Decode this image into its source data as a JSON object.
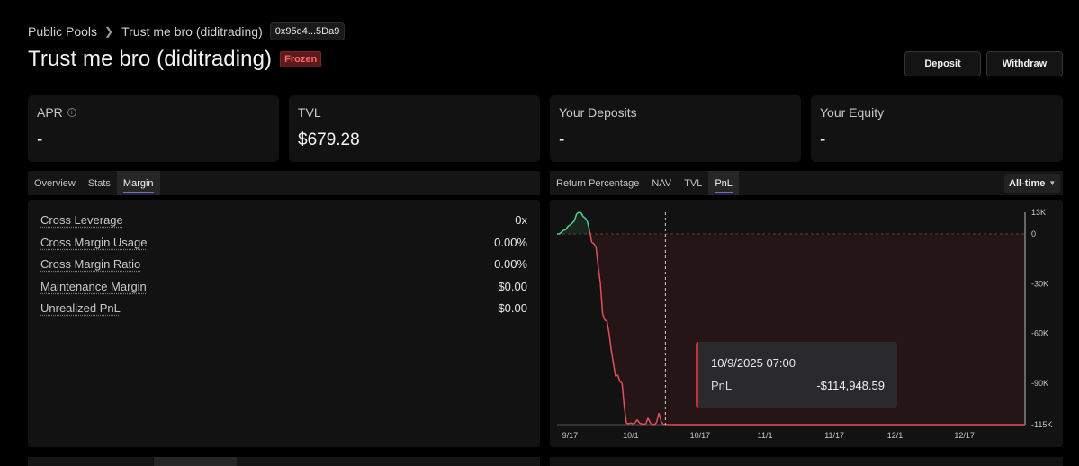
{
  "breadcrumb": {
    "root": "Public Pools",
    "current": "Trust me bro (diditrading)",
    "address": "0x95d4...5Da9"
  },
  "header": {
    "title": "Trust me bro (diditrading)",
    "status_badge": "Frozen",
    "deposit_label": "Deposit",
    "withdraw_label": "Withdraw"
  },
  "stats": {
    "apr_label": "APR",
    "apr_value": "-",
    "tvl_label": "TVL",
    "tvl_value": "$679.28",
    "deposits_label": "Your Deposits",
    "deposits_value": "-",
    "equity_label": "Your Equity",
    "equity_value": "-"
  },
  "left_tabs": [
    "Overview",
    "Stats",
    "Margin"
  ],
  "left_active_tab": "Margin",
  "margin_metrics": [
    {
      "label": "Cross Leverage",
      "value": "0x"
    },
    {
      "label": "Cross Margin Usage",
      "value": "0.00%"
    },
    {
      "label": "Cross Margin Ratio",
      "value": "0.00%"
    },
    {
      "label": "Maintenance Margin",
      "value": "$0.00"
    },
    {
      "label": "Unrealized PnL",
      "value": "$0.00"
    }
  ],
  "chart_tabs": [
    "Return Percentage",
    "NAV",
    "TVL",
    "PnL"
  ],
  "chart_active_tab": "PnL",
  "range_select": "All-time",
  "tooltip": {
    "date": "10/9/2025 07:00",
    "label": "PnL",
    "value": "-$114,948.59"
  },
  "colors": {
    "positive": "#4cd38a",
    "negative": "#e0505a",
    "accent": "#6b6bd6"
  },
  "chart_data": {
    "type": "area",
    "title": "PnL",
    "y_tick_labels": [
      "13K",
      "0",
      "-30K",
      "-60K",
      "-90K",
      "-115K"
    ],
    "y_ticks": [
      13000,
      0,
      -30000,
      -60000,
      -90000,
      -115000
    ],
    "ylim": [
      -115000,
      13000
    ],
    "x_tick_labels": [
      "9/17",
      "10/1",
      "10/17",
      "11/1",
      "11/17",
      "12/1",
      "12/17"
    ],
    "x_ticks": [
      0,
      14,
      30,
      45,
      61,
      75,
      91
    ],
    "xlim": [
      -3,
      105
    ],
    "baseline": 0,
    "crosshair_x": 22,
    "x": [
      -3,
      -2.5,
      -2,
      -1.5,
      -1,
      -0.5,
      0,
      0.5,
      1,
      1.5,
      2,
      2.5,
      3,
      3.5,
      4,
      4.5,
      5,
      5.5,
      6,
      6.5,
      7,
      7.5,
      8,
      8.5,
      9,
      9.5,
      10,
      10.5,
      11,
      11.5,
      12,
      12.5,
      13,
      13.5,
      14,
      14.5,
      15,
      15.5,
      16,
      16.5,
      17,
      17.5,
      18,
      18.5,
      19,
      19.5,
      20,
      20.5,
      21,
      21.5,
      22,
      25,
      40,
      60,
      80,
      100,
      105
    ],
    "values": [
      0,
      0,
      1000,
      2200,
      2500,
      4500,
      5500,
      6500,
      8000,
      12000,
      13000,
      12800,
      10500,
      9500,
      7500,
      2000,
      -5000,
      -6000,
      -8000,
      -20000,
      -30000,
      -48000,
      -52000,
      -52500,
      -60000,
      -70000,
      -78000,
      -86000,
      -85000,
      -89000,
      -90000,
      -104000,
      -114000,
      -114500,
      -114000,
      -114500,
      -114000,
      -112000,
      -114000,
      -114500,
      -114800,
      -114500,
      -111000,
      -114000,
      -114800,
      -115000,
      -113500,
      -108000,
      -113000,
      -114800,
      -114948.59,
      -115000,
      -115000,
      -115000,
      -115000,
      -115000,
      -115000
    ]
  }
}
